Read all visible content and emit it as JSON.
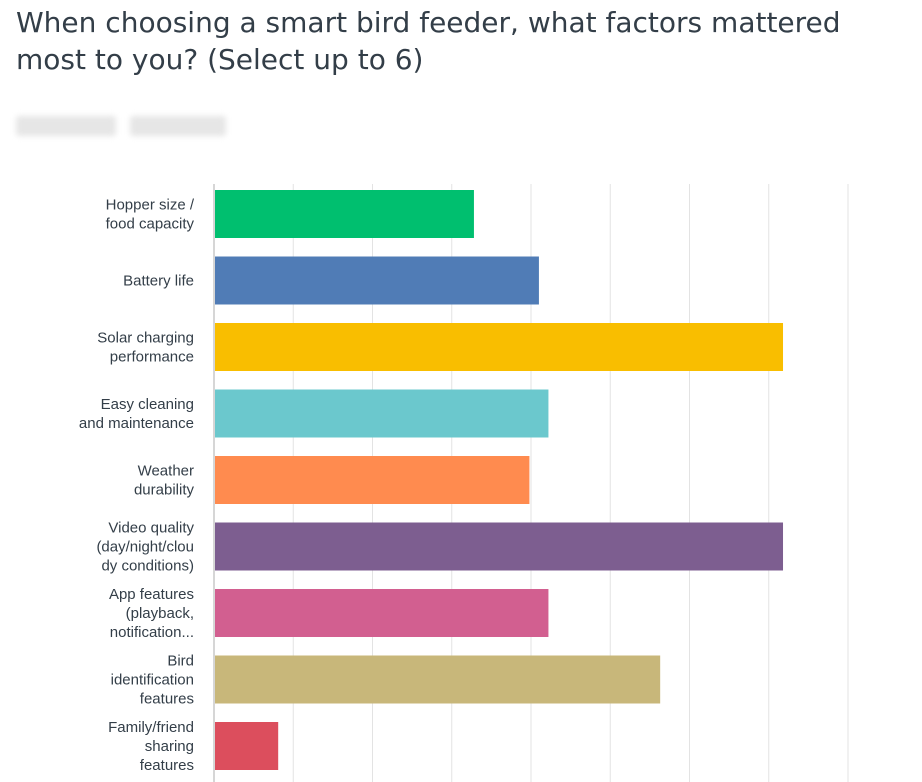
{
  "question": "When choosing a smart bird feeder, what factors mattered most to you? (Select up to 6)",
  "subtitle_redacted": true,
  "chart_data": {
    "type": "bar",
    "orientation": "horizontal",
    "grid": true,
    "xlim": [
      0,
      80
    ],
    "categories": [
      "Hopper size / food capacity",
      "Battery life",
      "Solar charging performance",
      "Easy cleaning and maintenance",
      "Weather durability",
      "Video quality (day/night/cloudy conditions)",
      "App features (playback, notification...",
      "Bird identification features",
      "Family/friend sharing features"
    ],
    "category_label_lines": [
      [
        "Hopper size /",
        "food capacity"
      ],
      [
        "Battery life"
      ],
      [
        "Solar charging",
        "performance"
      ],
      [
        "Easy cleaning",
        "and maintenance"
      ],
      [
        "Weather",
        "durability"
      ],
      [
        "Video quality",
        "(day/night/clou",
        "dy conditions)"
      ],
      [
        "App features",
        "(playback,",
        "notification..."
      ],
      [
        "Bird",
        "identification",
        "features"
      ],
      [
        "Family/friend",
        "sharing",
        "features"
      ]
    ],
    "values": [
      32.8,
      41,
      71.8,
      42.2,
      39.8,
      71.8,
      42.2,
      56.3,
      8.1
    ],
    "colors": [
      "#00bf6f",
      "#507cb6",
      "#f9be00",
      "#6bc8cd",
      "#ff8b4f",
      "#7d5e90",
      "#d25f90",
      "#c8b77a",
      "#dc4e5d"
    ]
  }
}
